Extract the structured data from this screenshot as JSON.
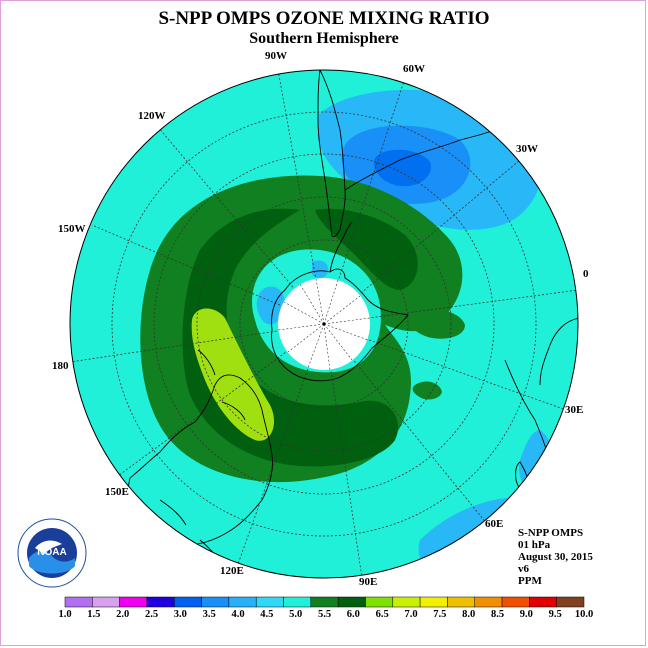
{
  "title": "S-NPP OMPS OZONE MIXING RATIO",
  "subtitle": "Southern Hemisphere",
  "longitude_labels": [
    "90W",
    "60W",
    "30W",
    "0",
    "30E",
    "60E",
    "90E",
    "120E",
    "150E",
    "180",
    "150W",
    "120W"
  ],
  "info": {
    "instrument": "S-NPP OMPS",
    "level": "01 hPa",
    "date": "August 30, 2015",
    "version": "v6",
    "units": "PPM"
  },
  "logo_text": "NOAA",
  "colorbar": {
    "labels": [
      "1.0",
      "1.5",
      "2.0",
      "2.5",
      "3.0",
      "3.5",
      "4.0",
      "4.5",
      "5.0",
      "5.5",
      "6.0",
      "6.5",
      "7.0",
      "7.5",
      "8.0",
      "8.5",
      "9.0",
      "9.5",
      "10.0"
    ],
    "colors": [
      "#b070f0",
      "#d8a0f0",
      "#f000f0",
      "#2000e0",
      "#0060f0",
      "#1890f8",
      "#28b0f8",
      "#30d8f8",
      "#20f0d8",
      "#108020",
      "#006010",
      "#80e000",
      "#c8f000",
      "#f0f000",
      "#f0c000",
      "#f09000",
      "#f05000",
      "#e00000",
      "#804020"
    ]
  },
  "map_fields": {
    "background": "#20f0d8",
    "high_ozone_dark": "#006010",
    "high_ozone": "#108020",
    "peak_ozone": "#a0e010",
    "low_ozone": "#28b8f8",
    "lower_ozone": "#1890f8",
    "lowest_ozone": "#0070f0",
    "polar_night": "#ffffff"
  }
}
